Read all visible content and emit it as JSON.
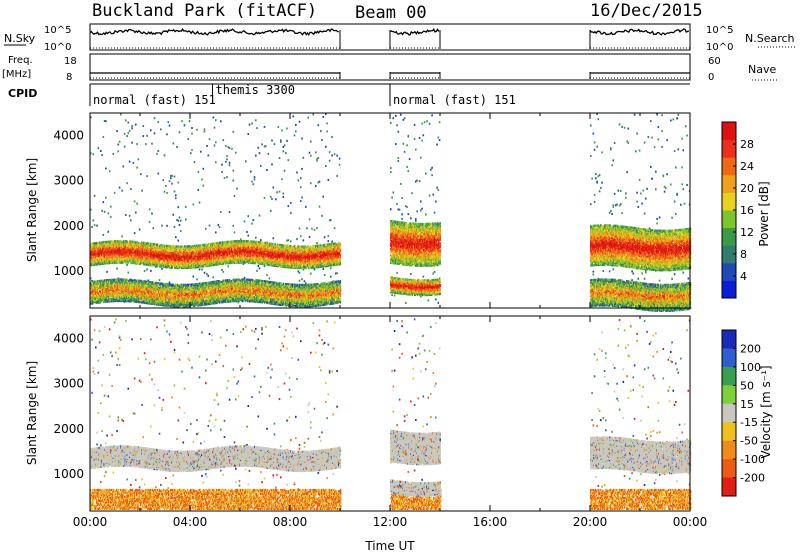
{
  "header": {
    "title": "Buckland Park (fitACF)",
    "beam": "Beam 00",
    "date": "16/Dec/2015"
  },
  "top_panels": {
    "nsky_label": "N.Sky",
    "nsearch_label": "N.Search",
    "nsky_ticks": [
      "10^5",
      "10^0"
    ],
    "nsearch_ticks": [
      "10^5",
      "10^0"
    ],
    "freq_label": "Freq.",
    "freq_unit": "[MHz]",
    "freq_ticks": [
      "18",
      "8"
    ],
    "nave_label": "Nave",
    "nave_ticks": [
      "60",
      "0"
    ],
    "cpid_label": "CPID",
    "cpid_segments": [
      {
        "label": "normal (fast) 151",
        "start_h": 0,
        "end_h": 4.9
      },
      {
        "label": "themis 3300",
        "start_h": 4.9,
        "end_h": 10
      },
      {
        "label": "normal (fast) 151",
        "start_h": 12,
        "end_h": 24
      }
    ]
  },
  "x_axis": {
    "label": "Time UT",
    "ticks": [
      "00:00",
      "04:00",
      "08:00",
      "12:00",
      "16:00",
      "20:00",
      "00:00"
    ]
  },
  "chart_data": [
    {
      "type": "heatmap",
      "name": "power",
      "ylabel": "Slant Range [km]",
      "y_ticks": [
        "1000",
        "2000",
        "3000",
        "4000"
      ],
      "xlim_hours": [
        0,
        24
      ],
      "ylim_km": [
        180,
        4500
      ],
      "colorbar_label": "Power [dB]",
      "colorbar_ticks": [
        "4",
        "8",
        "12",
        "16",
        "20",
        "24",
        "28"
      ],
      "colorbar_colors": [
        "#0a1ed8",
        "#1f48b8",
        "#2f7d6e",
        "#3c9a46",
        "#7cc52a",
        "#e8d21e",
        "#f0a01a",
        "#ec6a14",
        "#e8301c",
        "#e01010"
      ],
      "data_intervals_hours": [
        [
          0,
          10
        ],
        [
          12,
          14
        ],
        [
          20,
          24
        ]
      ],
      "echo_bands": [
        {
          "t0": 0,
          "t1": 10,
          "r0": 1150,
          "r1": 1650,
          "level": "high"
        },
        {
          "t0": 0,
          "t1": 10,
          "r0": 300,
          "r1": 800,
          "level": "mid"
        },
        {
          "t0": 12,
          "t1": 14,
          "r0": 1200,
          "r1": 2150,
          "level": "high"
        },
        {
          "t0": 12,
          "t1": 14,
          "r0": 550,
          "r1": 900,
          "level": "high"
        },
        {
          "t0": 20,
          "t1": 24,
          "r0": 1100,
          "r1": 2000,
          "level": "high"
        },
        {
          "t0": 20,
          "t1": 24,
          "r0": 200,
          "r1": 800,
          "level": "mid"
        }
      ]
    },
    {
      "type": "heatmap",
      "name": "velocity",
      "ylabel": "Slant Range [km]",
      "y_ticks": [
        "1000",
        "2000",
        "3000",
        "4000"
      ],
      "xlim_hours": [
        0,
        24
      ],
      "ylim_km": [
        180,
        4500
      ],
      "colorbar_label": "Velocity [m s⁻¹]",
      "colorbar_ticks": [
        "200",
        "100",
        "50",
        "15",
        "-15",
        "-50",
        "-100",
        "-200"
      ],
      "colorbar_colors": [
        "#1a2ab8",
        "#2f5ed0",
        "#3aa050",
        "#7cd03a",
        "#c8c8c0",
        "#f0c020",
        "#f08a18",
        "#ec5a14",
        "#e01e14"
      ],
      "data_intervals_hours": [
        [
          0,
          10
        ],
        [
          12,
          14
        ],
        [
          20,
          24
        ]
      ],
      "ground_scatter_bands": [
        {
          "t0": 0,
          "t1": 10,
          "r0": 1150,
          "r1": 1600
        },
        {
          "t0": 12,
          "t1": 14,
          "r0": 1300,
          "r1": 2000
        },
        {
          "t0": 12,
          "t1": 14,
          "r0": 600,
          "r1": 900
        },
        {
          "t0": 20,
          "t1": 24,
          "r0": 1100,
          "r1": 1800
        }
      ]
    }
  ]
}
